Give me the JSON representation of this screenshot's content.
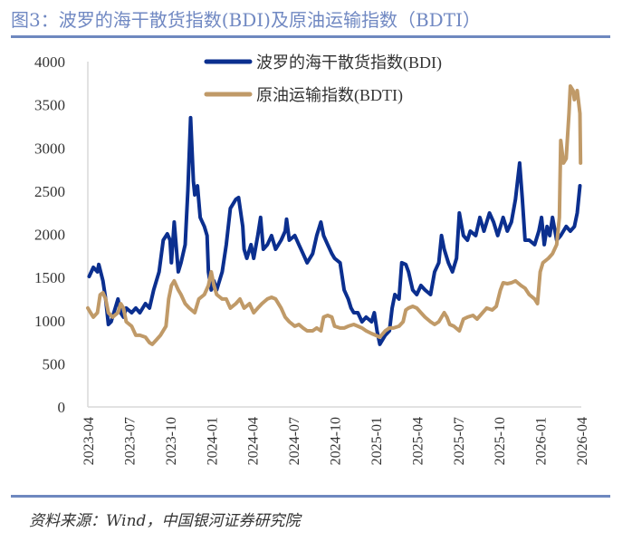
{
  "title": "图3：波罗的海干散货指数(BDI)及原油运输指数（BDTI）",
  "source": "资料来源：Wind，中国银河证券研究院",
  "chart_data": {
    "type": "line",
    "title": "图3：波罗的海干散货指数(BDI)及原油运输指数（BDTI）",
    "x_unit": "months since 2023-04",
    "xlim": [
      0,
      36
    ],
    "ylim": [
      0,
      4000
    ],
    "yticks": [
      "0",
      "500",
      "1000",
      "1500",
      "2000",
      "2500",
      "3000",
      "3500",
      "4000"
    ],
    "ytick_values": [
      0,
      500,
      1000,
      1500,
      2000,
      2500,
      3000,
      3500,
      4000
    ],
    "xticks": [
      "2023-04",
      "2023-07",
      "2023-10",
      "2024-01",
      "2024-04",
      "2024-07",
      "2024-10",
      "2025-01",
      "2025-04",
      "2025-07",
      "2025-10",
      "2026-01",
      "2026-04"
    ],
    "xtick_values": [
      0,
      3,
      6,
      9,
      12,
      15,
      18,
      21,
      24,
      27,
      30,
      33,
      36
    ],
    "legend_position": "top-center",
    "grid": false,
    "series": [
      {
        "name": "波罗的海干散货指数(BDI)",
        "color": "#0b2f8f",
        "points": [
          [
            0.1,
            1512
          ],
          [
            0.4,
            1617
          ],
          [
            0.7,
            1565
          ],
          [
            0.8,
            1650
          ],
          [
            1.1,
            1460
          ],
          [
            1.3,
            1250
          ],
          [
            1.5,
            955
          ],
          [
            1.7,
            987
          ],
          [
            2.0,
            1145
          ],
          [
            2.2,
            1250
          ],
          [
            2.4,
            1092
          ],
          [
            2.6,
            1040
          ],
          [
            2.8,
            1145
          ],
          [
            3.2,
            1092
          ],
          [
            3.5,
            1145
          ],
          [
            3.8,
            1092
          ],
          [
            4.2,
            1197
          ],
          [
            4.5,
            1145
          ],
          [
            4.8,
            1355
          ],
          [
            5.2,
            1565
          ],
          [
            5.5,
            1932
          ],
          [
            5.8,
            2005
          ],
          [
            6.0,
            1932
          ],
          [
            6.1,
            1670
          ],
          [
            6.3,
            2142
          ],
          [
            6.6,
            1565
          ],
          [
            6.8,
            1670
          ],
          [
            7.1,
            1880
          ],
          [
            7.3,
            2510
          ],
          [
            7.5,
            3350
          ],
          [
            7.7,
            2615
          ],
          [
            7.8,
            2457
          ],
          [
            8.0,
            2562
          ],
          [
            8.2,
            2195
          ],
          [
            8.5,
            2090
          ],
          [
            8.7,
            1985
          ],
          [
            8.8,
            1565
          ],
          [
            9.0,
            1355
          ],
          [
            9.2,
            1460
          ],
          [
            9.4,
            1355
          ],
          [
            9.8,
            1565
          ],
          [
            10.1,
            1880
          ],
          [
            10.4,
            2300
          ],
          [
            10.8,
            2405
          ],
          [
            11.0,
            2425
          ],
          [
            11.3,
            2090
          ],
          [
            11.4,
            1827
          ],
          [
            11.6,
            1722
          ],
          [
            11.9,
            1880
          ],
          [
            12.1,
            1722
          ],
          [
            12.4,
            1985
          ],
          [
            12.6,
            2195
          ],
          [
            12.8,
            1827
          ],
          [
            13.1,
            1880
          ],
          [
            13.4,
            1985
          ],
          [
            13.7,
            1827
          ],
          [
            14.1,
            1932
          ],
          [
            14.4,
            2037
          ],
          [
            14.5,
            2174
          ],
          [
            14.7,
            1932
          ],
          [
            15.1,
            1985
          ],
          [
            15.4,
            1880
          ],
          [
            15.7,
            1775
          ],
          [
            16.0,
            1670
          ],
          [
            16.4,
            1775
          ],
          [
            16.7,
            1985
          ],
          [
            17.0,
            2142
          ],
          [
            17.2,
            1985
          ],
          [
            17.5,
            1880
          ],
          [
            17.8,
            1775
          ],
          [
            18.0,
            1722
          ],
          [
            18.4,
            1670
          ],
          [
            18.7,
            1355
          ],
          [
            19.0,
            1250
          ],
          [
            19.2,
            1145
          ],
          [
            19.4,
            1092
          ],
          [
            19.7,
            1092
          ],
          [
            20.0,
            987
          ],
          [
            20.3,
            1040
          ],
          [
            20.7,
            987
          ],
          [
            20.9,
            1092
          ],
          [
            21.1,
            882
          ],
          [
            21.3,
            725
          ],
          [
            21.7,
            830
          ],
          [
            22.0,
            882
          ],
          [
            22.2,
            1145
          ],
          [
            22.4,
            1302
          ],
          [
            22.7,
            1250
          ],
          [
            22.9,
            1670
          ],
          [
            23.2,
            1650
          ],
          [
            23.4,
            1565
          ],
          [
            23.7,
            1355
          ],
          [
            24.0,
            1302
          ],
          [
            24.3,
            1407
          ],
          [
            24.6,
            1355
          ],
          [
            25.0,
            1302
          ],
          [
            25.3,
            1565
          ],
          [
            25.6,
            1670
          ],
          [
            25.8,
            1985
          ],
          [
            26.0,
            1827
          ],
          [
            26.3,
            1670
          ],
          [
            26.6,
            1565
          ],
          [
            26.9,
            1722
          ],
          [
            27.1,
            2247
          ],
          [
            27.4,
            1985
          ],
          [
            27.7,
            1932
          ],
          [
            27.9,
            2037
          ],
          [
            28.3,
            1985
          ],
          [
            28.6,
            2195
          ],
          [
            28.9,
            2037
          ],
          [
            29.3,
            2247
          ],
          [
            29.6,
            2142
          ],
          [
            29.9,
            1985
          ],
          [
            30.3,
            2195
          ],
          [
            30.6,
            2037
          ],
          [
            30.9,
            2142
          ],
          [
            31.2,
            2405
          ],
          [
            31.5,
            2825
          ],
          [
            31.7,
            2405
          ],
          [
            31.9,
            1932
          ],
          [
            32.2,
            1932
          ],
          [
            32.6,
            1880
          ],
          [
            32.9,
            2037
          ],
          [
            33.1,
            2195
          ],
          [
            33.3,
            1880
          ],
          [
            33.5,
            2090
          ],
          [
            33.7,
            1985
          ],
          [
            33.9,
            2195
          ],
          [
            34.2,
            1932
          ],
          [
            34.5,
            1985
          ],
          [
            34.9,
            2090
          ],
          [
            35.2,
            2037
          ],
          [
            35.5,
            2090
          ],
          [
            35.7,
            2247
          ],
          [
            35.9,
            2562
          ]
        ]
      },
      {
        "name": "原油运输指数(BDTI)",
        "color": "#c09a68",
        "points": [
          [
            0,
            1145
          ],
          [
            0.2,
            1092
          ],
          [
            0.4,
            1040
          ],
          [
            0.7,
            1092
          ],
          [
            0.9,
            1300
          ],
          [
            1.1,
            1323
          ],
          [
            1.3,
            1250
          ],
          [
            1.5,
            1092
          ],
          [
            1.8,
            1040
          ],
          [
            2.2,
            1092
          ],
          [
            2.4,
            1197
          ],
          [
            2.6,
            1145
          ],
          [
            2.8,
            987
          ],
          [
            3.2,
            935
          ],
          [
            3.5,
            830
          ],
          [
            3.8,
            830
          ],
          [
            4.2,
            808
          ],
          [
            4.5,
            745
          ],
          [
            4.7,
            725
          ],
          [
            5.0,
            777
          ],
          [
            5.3,
            830
          ],
          [
            5.7,
            935
          ],
          [
            5.9,
            1250
          ],
          [
            6.1,
            1407
          ],
          [
            6.3,
            1460
          ],
          [
            6.6,
            1355
          ],
          [
            6.8,
            1302
          ],
          [
            7.1,
            1197
          ],
          [
            7.4,
            1145
          ],
          [
            7.8,
            1092
          ],
          [
            8.1,
            1250
          ],
          [
            8.5,
            1302
          ],
          [
            8.8,
            1407
          ],
          [
            9.0,
            1565
          ],
          [
            9.2,
            1407
          ],
          [
            9.4,
            1302
          ],
          [
            9.8,
            1250
          ],
          [
            10.1,
            1250
          ],
          [
            10.4,
            1145
          ],
          [
            10.8,
            1197
          ],
          [
            11.1,
            1250
          ],
          [
            11.4,
            1145
          ],
          [
            11.8,
            1197
          ],
          [
            12.1,
            1092
          ],
          [
            12.4,
            1145
          ],
          [
            12.7,
            1197
          ],
          [
            13.1,
            1250
          ],
          [
            13.4,
            1270
          ],
          [
            13.7,
            1250
          ],
          [
            14.1,
            1145
          ],
          [
            14.4,
            1040
          ],
          [
            14.7,
            987
          ],
          [
            15.1,
            935
          ],
          [
            15.4,
            955
          ],
          [
            15.7,
            914
          ],
          [
            16.0,
            882
          ],
          [
            16.4,
            882
          ],
          [
            16.7,
            914
          ],
          [
            17.0,
            882
          ],
          [
            17.2,
            1040
          ],
          [
            17.5,
            1060
          ],
          [
            17.8,
            1040
          ],
          [
            18.0,
            935
          ],
          [
            18.4,
            914
          ],
          [
            18.7,
            914
          ],
          [
            19.0,
            935
          ],
          [
            19.4,
            955
          ],
          [
            19.7,
            935
          ],
          [
            20.0,
            914
          ],
          [
            20.3,
            882
          ],
          [
            20.7,
            850
          ],
          [
            21.0,
            830
          ],
          [
            21.3,
            808
          ],
          [
            21.7,
            882
          ],
          [
            22.0,
            914
          ],
          [
            22.3,
            914
          ],
          [
            22.7,
            935
          ],
          [
            23.0,
            987
          ],
          [
            23.2,
            1123
          ],
          [
            23.4,
            1145
          ],
          [
            23.7,
            1165
          ],
          [
            24.0,
            1145
          ],
          [
            24.3,
            1092
          ],
          [
            24.6,
            1040
          ],
          [
            25.0,
            987
          ],
          [
            25.3,
            955
          ],
          [
            25.6,
            987
          ],
          [
            26.0,
            1092
          ],
          [
            26.2,
            1040
          ],
          [
            26.4,
            955
          ],
          [
            26.7,
            935
          ],
          [
            27.1,
            882
          ],
          [
            27.4,
            1018
          ],
          [
            27.7,
            1040
          ],
          [
            28.1,
            1060
          ],
          [
            28.4,
            1018
          ],
          [
            28.8,
            1092
          ],
          [
            29.1,
            1145
          ],
          [
            29.5,
            1123
          ],
          [
            29.8,
            1165
          ],
          [
            30.1,
            1355
          ],
          [
            30.3,
            1438
          ],
          [
            30.6,
            1428
          ],
          [
            30.9,
            1438
          ],
          [
            31.2,
            1460
          ],
          [
            31.6,
            1407
          ],
          [
            31.9,
            1375
          ],
          [
            32.2,
            1302
          ],
          [
            32.6,
            1250
          ],
          [
            32.8,
            1197
          ],
          [
            33.0,
            1565
          ],
          [
            33.2,
            1670
          ],
          [
            33.6,
            1722
          ],
          [
            33.9,
            1775
          ],
          [
            34.2,
            1880
          ],
          [
            34.4,
            2195
          ],
          [
            34.5,
            3087
          ],
          [
            34.7,
            2825
          ],
          [
            34.9,
            2877
          ],
          [
            35.1,
            3400
          ],
          [
            35.2,
            3717
          ],
          [
            35.4,
            3665
          ],
          [
            35.5,
            3560
          ],
          [
            35.7,
            3665
          ],
          [
            35.9,
            3400
          ],
          [
            35.95,
            2825
          ]
        ]
      }
    ]
  }
}
